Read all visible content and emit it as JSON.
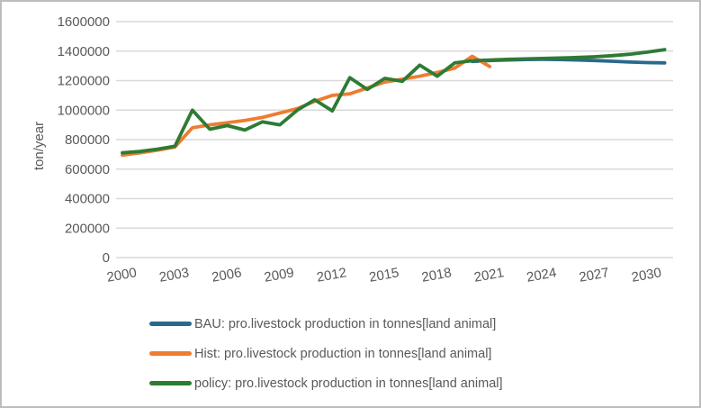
{
  "chart_data": {
    "type": "line",
    "title": "",
    "xlabel": "",
    "ylabel": "ton/year",
    "ylim": [
      0,
      1600000
    ],
    "yticks": [
      0,
      200000,
      400000,
      600000,
      800000,
      1000000,
      1200000,
      1400000,
      1600000
    ],
    "xticks": [
      2000,
      2003,
      2006,
      2009,
      2012,
      2015,
      2018,
      2021,
      2024,
      2027,
      2030
    ],
    "xlim": [
      2000,
      2031
    ],
    "grid": "horizontal-only",
    "gridline_color": "#d9d9d9",
    "tick_label_color": "#595959",
    "axis_label_color": "#595959",
    "legend_position": "bottom-left",
    "series": [
      {
        "name": "BAU: pro.livestock production in tonnes[land animal]",
        "color": "#29698c",
        "years": [
          2020,
          2021,
          2022,
          2023,
          2024,
          2025,
          2026,
          2027,
          2028,
          2029,
          2030,
          2031
        ],
        "values": [
          1330000,
          1336000,
          1340000,
          1343000,
          1344000,
          1343000,
          1340000,
          1336000,
          1331000,
          1326000,
          1322000,
          1320000
        ]
      },
      {
        "name": "Hist: pro.livestock production in tonnes[land animal]",
        "color": "#ed7d31",
        "years": [
          2000,
          2001,
          2002,
          2003,
          2004,
          2005,
          2006,
          2007,
          2008,
          2009,
          2010,
          2011,
          2012,
          2013,
          2014,
          2015,
          2016,
          2017,
          2018,
          2019,
          2020,
          2021
        ],
        "values": [
          695000,
          710000,
          728000,
          750000,
          880000,
          900000,
          915000,
          930000,
          950000,
          980000,
          1010000,
          1060000,
          1100000,
          1110000,
          1150000,
          1190000,
          1210000,
          1230000,
          1255000,
          1285000,
          1365000,
          1295000
        ]
      },
      {
        "name": "policy: pro.livestock production in tonnes[land animal]",
        "color": "#2e7b33",
        "years": [
          2000,
          2001,
          2002,
          2003,
          2004,
          2005,
          2006,
          2007,
          2008,
          2009,
          2010,
          2011,
          2012,
          2013,
          2014,
          2015,
          2016,
          2017,
          2018,
          2019,
          2020,
          2021,
          2022,
          2023,
          2024,
          2025,
          2026,
          2027,
          2028,
          2029,
          2030,
          2031
        ],
        "values": [
          710000,
          720000,
          735000,
          755000,
          1000000,
          870000,
          895000,
          865000,
          920000,
          900000,
          1000000,
          1070000,
          995000,
          1220000,
          1140000,
          1215000,
          1195000,
          1305000,
          1230000,
          1320000,
          1335000,
          1340000,
          1344000,
          1347000,
          1350000,
          1353000,
          1357000,
          1362000,
          1369000,
          1379000,
          1393000,
          1410000
        ]
      }
    ]
  }
}
